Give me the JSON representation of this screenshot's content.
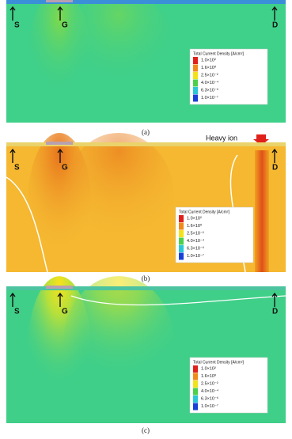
{
  "panels": [
    {
      "terminals": [
        "S",
        "G",
        "D"
      ],
      "legend": {
        "title": "Total Current Density [A/cm²]",
        "labels": [
          "1.0×10²",
          "1.6×10⁰",
          "2.5×10⁻²",
          "4.0×10⁻⁴",
          "6.3×10⁻⁶",
          "1.0×10⁻⁷"
        ]
      },
      "caption": "(a)"
    },
    {
      "terminals": [
        "S",
        "G",
        "D"
      ],
      "annotation": "Heavy ion",
      "legend": {
        "title": "Total Current Density [A/cm²]",
        "labels": [
          "1.0×10²",
          "1.6×10⁰",
          "2.5×10⁻²",
          "4.0×10⁻⁴",
          "6.3×10⁻⁶",
          "1.0×10⁻⁷"
        ]
      },
      "caption": "(b)"
    },
    {
      "terminals": [
        "S",
        "G",
        "D"
      ],
      "legend": {
        "title": "Total Current Density [A/cm²]",
        "labels": [
          "1.0×10²",
          "1.6×10⁰",
          "2.5×10⁻²",
          "4.0×10⁻⁴",
          "6.3×10⁻⁶",
          "1.0×10⁻⁷"
        ]
      },
      "caption": "(c)"
    }
  ]
}
